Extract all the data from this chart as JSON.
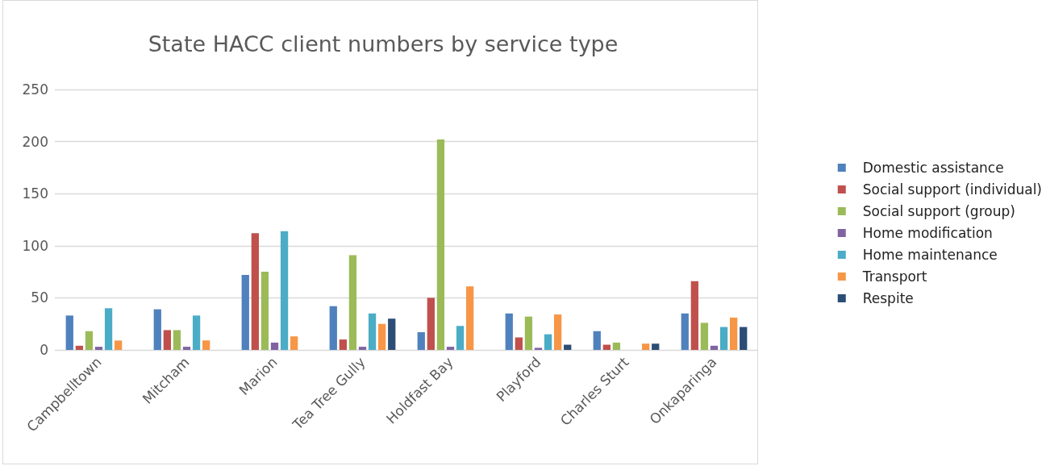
{
  "chart_data": {
    "type": "bar",
    "title": "State HACC client numbers by service type",
    "categories": [
      "Campbelltown",
      "Mitcham",
      "Marion",
      "Tea Tree Gully",
      "Holdfast Bay",
      "Playford",
      "Charles Sturt",
      "Onkaparinga"
    ],
    "series": [
      {
        "name": "Domestic assistance",
        "color": "#4f81bd",
        "values": [
          33,
          39,
          72,
          42,
          17,
          35,
          18,
          35
        ]
      },
      {
        "name": "Social support (individual)",
        "color": "#c0504d",
        "values": [
          4,
          19,
          112,
          10,
          50,
          12,
          5,
          66
        ]
      },
      {
        "name": "Social support (group)",
        "color": "#9bbb59",
        "values": [
          18,
          19,
          75,
          91,
          202,
          32,
          7,
          26
        ]
      },
      {
        "name": "Home modification",
        "color": "#8064a2",
        "values": [
          3,
          3,
          7,
          3,
          3,
          2,
          null,
          4
        ]
      },
      {
        "name": "Home maintenance",
        "color": "#4bacc6",
        "values": [
          40,
          33,
          114,
          35,
          23,
          15,
          null,
          22
        ]
      },
      {
        "name": "Transport",
        "color": "#f79646",
        "values": [
          9,
          9,
          13,
          25,
          61,
          34,
          6,
          31
        ]
      },
      {
        "name": "Respite",
        "color": "#2c4d75",
        "values": [
          null,
          null,
          null,
          30,
          null,
          5,
          6,
          22
        ]
      }
    ],
    "ylim": [
      0,
      250
    ],
    "yticks": [
      0,
      50,
      100,
      150,
      200,
      250
    ],
    "grid": "y",
    "legend": "right"
  }
}
